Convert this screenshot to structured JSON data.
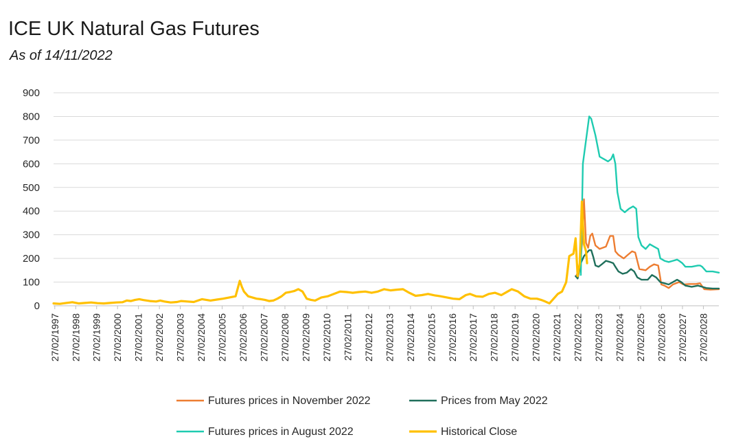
{
  "chart_data": {
    "type": "line",
    "title": "ICE UK Natural Gas Futures",
    "subtitle": "As of 14/11/2022",
    "xlabel": "",
    "ylabel": "",
    "ylim": [
      0,
      900
    ],
    "yticks": [
      0,
      100,
      200,
      300,
      400,
      500,
      600,
      700,
      800,
      900
    ],
    "xlim": [
      1997.1,
      2028.9
    ],
    "xtick_labels": [
      "27/02/1997",
      "27/02/1998",
      "27/02/1999",
      "27/02/2000",
      "27/02/2001",
      "27/02/2002",
      "27/02/2003",
      "27/02/2004",
      "27/02/2005",
      "27/02/2006",
      "27/02/2007",
      "27/02/2008",
      "27/02/2009",
      "27/02/2010",
      "27/02/2011",
      "27/02/2012",
      "27/02/2013",
      "27/02/2014",
      "27/02/2015",
      "27/02/2016",
      "27/02/2017",
      "27/02/2018",
      "27/02/2019",
      "27/02/2020",
      "27/02/2021",
      "27/02/2022",
      "27/02/2023",
      "27/02/2024",
      "27/02/2025",
      "27/02/2026",
      "27/02/2027",
      "27/02/2028"
    ],
    "grid": true,
    "legend_position": "bottom",
    "series": [
      {
        "name": "Futures prices in November 2022",
        "color": "#ED7D31",
        "x": [
          2022.1,
          2022.2,
          2022.3,
          2022.38,
          2022.45,
          2022.55,
          2022.65,
          2022.75,
          2022.85,
          2023.0,
          2023.2,
          2023.5,
          2023.7,
          2023.85,
          2023.95,
          2024.1,
          2024.35,
          2024.55,
          2024.75,
          2024.9,
          2025.1,
          2025.4,
          2025.6,
          2025.8,
          2026.0,
          2026.15,
          2026.3,
          2026.5,
          2026.7,
          2026.85,
          2027.0,
          2027.2,
          2027.5,
          2027.8,
          2028.0,
          2028.2,
          2028.5,
          2028.9
        ],
        "y": [
          130,
          150,
          200,
          290,
          450,
          265,
          245,
          295,
          305,
          255,
          240,
          250,
          295,
          295,
          230,
          215,
          200,
          215,
          230,
          225,
          155,
          150,
          165,
          175,
          170,
          90,
          85,
          75,
          90,
          95,
          100,
          90,
          92,
          92,
          95,
          70,
          68,
          70
        ]
      },
      {
        "name": "Prices from May 2022",
        "color": "#1F6F5B",
        "x": [
          2022.05,
          2022.15,
          2022.3,
          2022.45,
          2022.6,
          2022.7,
          2022.8,
          2022.9,
          2023.0,
          2023.15,
          2023.3,
          2023.5,
          2023.7,
          2023.85,
          2023.95,
          2024.1,
          2024.3,
          2024.5,
          2024.7,
          2024.85,
          2025.0,
          2025.2,
          2025.5,
          2025.7,
          2025.9,
          2026.1,
          2026.3,
          2026.5,
          2026.7,
          2026.9,
          2027.1,
          2027.3,
          2027.6,
          2027.9,
          2028.1,
          2028.3,
          2028.6,
          2028.9
        ],
        "y": [
          125,
          115,
          180,
          210,
          225,
          235,
          235,
          205,
          170,
          165,
          175,
          190,
          185,
          180,
          165,
          145,
          135,
          140,
          155,
          145,
          120,
          110,
          110,
          130,
          120,
          100,
          95,
          90,
          100,
          110,
          100,
          85,
          80,
          85,
          80,
          75,
          73,
          73
        ]
      },
      {
        "name": "Futures prices in August 2022",
        "color": "#1ECBB0",
        "x": [
          2022.3,
          2022.4,
          2022.55,
          2022.7,
          2022.8,
          2023.0,
          2023.2,
          2023.4,
          2023.6,
          2023.75,
          2023.85,
          2023.95,
          2024.05,
          2024.2,
          2024.4,
          2024.6,
          2024.8,
          2024.95,
          2025.05,
          2025.2,
          2025.4,
          2025.6,
          2025.8,
          2026.0,
          2026.1,
          2026.3,
          2026.5,
          2026.7,
          2026.9,
          2027.0,
          2027.15,
          2027.3,
          2027.6,
          2027.9,
          2028.0,
          2028.1,
          2028.3,
          2028.6,
          2028.9
        ],
        "y": [
          130,
          600,
          700,
          800,
          790,
          720,
          630,
          620,
          610,
          620,
          640,
          600,
          480,
          410,
          395,
          410,
          420,
          410,
          290,
          255,
          240,
          260,
          250,
          240,
          200,
          190,
          185,
          190,
          195,
          190,
          180,
          165,
          165,
          170,
          170,
          165,
          145,
          145,
          140
        ]
      },
      {
        "name": "Historical Close",
        "color": "#FFC000",
        "x": [
          1997.1,
          1997.4,
          1997.7,
          1998.0,
          1998.3,
          1998.6,
          1998.9,
          1999.2,
          1999.5,
          1999.8,
          2000.1,
          2000.4,
          2000.6,
          2000.8,
          2001.0,
          2001.2,
          2001.4,
          2001.7,
          2002.0,
          2002.2,
          2002.4,
          2002.7,
          2003.0,
          2003.2,
          2003.5,
          2003.8,
          2004.0,
          2004.2,
          2004.4,
          2004.6,
          2004.9,
          2005.2,
          2005.5,
          2005.8,
          2006.0,
          2006.1,
          2006.2,
          2006.4,
          2006.6,
          2006.8,
          2007.0,
          2007.2,
          2007.4,
          2007.6,
          2007.8,
          2008.0,
          2008.2,
          2008.4,
          2008.6,
          2008.8,
          2009.0,
          2009.2,
          2009.4,
          2009.6,
          2009.9,
          2010.2,
          2010.5,
          2010.8,
          2011.1,
          2011.4,
          2011.7,
          2012.0,
          2012.3,
          2012.6,
          2012.9,
          2013.2,
          2013.5,
          2013.8,
          2014.1,
          2014.4,
          2014.7,
          2015.0,
          2015.3,
          2015.6,
          2015.9,
          2016.2,
          2016.5,
          2016.8,
          2017.0,
          2017.3,
          2017.6,
          2017.9,
          2018.2,
          2018.5,
          2018.8,
          2019.0,
          2019.3,
          2019.6,
          2019.9,
          2020.2,
          2020.4,
          2020.6,
          2020.8,
          2021.0,
          2021.2,
          2021.4,
          2021.6,
          2021.75,
          2021.85,
          2021.95,
          2022.05,
          2022.15,
          2022.25,
          2022.35,
          2022.45,
          2022.55,
          2022.6
        ],
        "y": [
          10,
          8,
          12,
          15,
          10,
          12,
          14,
          11,
          10,
          12,
          14,
          15,
          22,
          20,
          25,
          28,
          24,
          20,
          18,
          22,
          18,
          14,
          16,
          20,
          18,
          16,
          22,
          28,
          25,
          22,
          26,
          30,
          35,
          40,
          105,
          80,
          60,
          40,
          35,
          30,
          28,
          25,
          20,
          22,
          30,
          40,
          55,
          58,
          62,
          70,
          60,
          30,
          25,
          22,
          35,
          40,
          50,
          60,
          58,
          55,
          58,
          60,
          55,
          60,
          70,
          65,
          68,
          70,
          55,
          42,
          45,
          50,
          44,
          40,
          35,
          30,
          28,
          45,
          50,
          40,
          38,
          50,
          55,
          45,
          60,
          70,
          60,
          40,
          30,
          30,
          25,
          18,
          10,
          30,
          50,
          60,
          100,
          210,
          215,
          220,
          285,
          125,
          180,
          440,
          260,
          230,
          180
        ]
      }
    ]
  }
}
